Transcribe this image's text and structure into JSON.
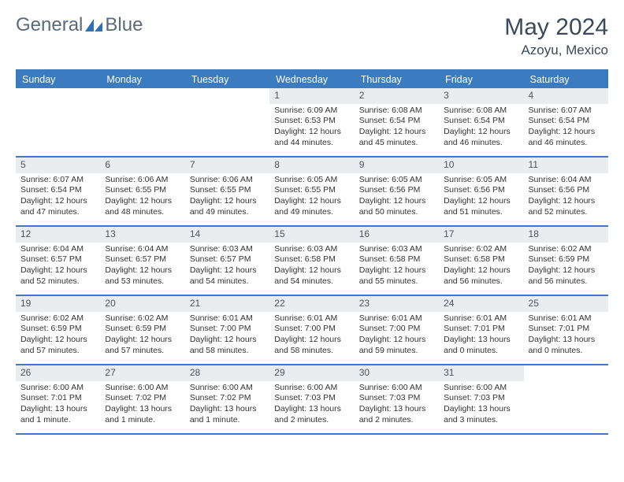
{
  "brand": {
    "part1": "General",
    "part2": "Blue"
  },
  "title": "May 2024",
  "location": "Azoyu, Mexico",
  "colors": {
    "header_bg": "#3b7bbf",
    "header_text": "#ffffff",
    "daynum_bg": "#e9edf0",
    "daynum_text": "#4a5560",
    "body_text": "#333333",
    "title_text": "#3a4a58",
    "logo_text": "#5a6a77",
    "logo_icon": "#2f6fb3",
    "page_bg": "#ffffff"
  },
  "day_headers": [
    "Sunday",
    "Monday",
    "Tuesday",
    "Wednesday",
    "Thursday",
    "Friday",
    "Saturday"
  ],
  "weeks": [
    [
      {
        "empty": true
      },
      {
        "empty": true
      },
      {
        "empty": true
      },
      {
        "day": "1",
        "sunrise": "Sunrise: 6:09 AM",
        "sunset": "Sunset: 6:53 PM",
        "daylight1": "Daylight: 12 hours",
        "daylight2": "and 44 minutes."
      },
      {
        "day": "2",
        "sunrise": "Sunrise: 6:08 AM",
        "sunset": "Sunset: 6:54 PM",
        "daylight1": "Daylight: 12 hours",
        "daylight2": "and 45 minutes."
      },
      {
        "day": "3",
        "sunrise": "Sunrise: 6:08 AM",
        "sunset": "Sunset: 6:54 PM",
        "daylight1": "Daylight: 12 hours",
        "daylight2": "and 46 minutes."
      },
      {
        "day": "4",
        "sunrise": "Sunrise: 6:07 AM",
        "sunset": "Sunset: 6:54 PM",
        "daylight1": "Daylight: 12 hours",
        "daylight2": "and 46 minutes."
      }
    ],
    [
      {
        "day": "5",
        "sunrise": "Sunrise: 6:07 AM",
        "sunset": "Sunset: 6:54 PM",
        "daylight1": "Daylight: 12 hours",
        "daylight2": "and 47 minutes."
      },
      {
        "day": "6",
        "sunrise": "Sunrise: 6:06 AM",
        "sunset": "Sunset: 6:55 PM",
        "daylight1": "Daylight: 12 hours",
        "daylight2": "and 48 minutes."
      },
      {
        "day": "7",
        "sunrise": "Sunrise: 6:06 AM",
        "sunset": "Sunset: 6:55 PM",
        "daylight1": "Daylight: 12 hours",
        "daylight2": "and 49 minutes."
      },
      {
        "day": "8",
        "sunrise": "Sunrise: 6:05 AM",
        "sunset": "Sunset: 6:55 PM",
        "daylight1": "Daylight: 12 hours",
        "daylight2": "and 49 minutes."
      },
      {
        "day": "9",
        "sunrise": "Sunrise: 6:05 AM",
        "sunset": "Sunset: 6:56 PM",
        "daylight1": "Daylight: 12 hours",
        "daylight2": "and 50 minutes."
      },
      {
        "day": "10",
        "sunrise": "Sunrise: 6:05 AM",
        "sunset": "Sunset: 6:56 PM",
        "daylight1": "Daylight: 12 hours",
        "daylight2": "and 51 minutes."
      },
      {
        "day": "11",
        "sunrise": "Sunrise: 6:04 AM",
        "sunset": "Sunset: 6:56 PM",
        "daylight1": "Daylight: 12 hours",
        "daylight2": "and 52 minutes."
      }
    ],
    [
      {
        "day": "12",
        "sunrise": "Sunrise: 6:04 AM",
        "sunset": "Sunset: 6:57 PM",
        "daylight1": "Daylight: 12 hours",
        "daylight2": "and 52 minutes."
      },
      {
        "day": "13",
        "sunrise": "Sunrise: 6:04 AM",
        "sunset": "Sunset: 6:57 PM",
        "daylight1": "Daylight: 12 hours",
        "daylight2": "and 53 minutes."
      },
      {
        "day": "14",
        "sunrise": "Sunrise: 6:03 AM",
        "sunset": "Sunset: 6:57 PM",
        "daylight1": "Daylight: 12 hours",
        "daylight2": "and 54 minutes."
      },
      {
        "day": "15",
        "sunrise": "Sunrise: 6:03 AM",
        "sunset": "Sunset: 6:58 PM",
        "daylight1": "Daylight: 12 hours",
        "daylight2": "and 54 minutes."
      },
      {
        "day": "16",
        "sunrise": "Sunrise: 6:03 AM",
        "sunset": "Sunset: 6:58 PM",
        "daylight1": "Daylight: 12 hours",
        "daylight2": "and 55 minutes."
      },
      {
        "day": "17",
        "sunrise": "Sunrise: 6:02 AM",
        "sunset": "Sunset: 6:58 PM",
        "daylight1": "Daylight: 12 hours",
        "daylight2": "and 56 minutes."
      },
      {
        "day": "18",
        "sunrise": "Sunrise: 6:02 AM",
        "sunset": "Sunset: 6:59 PM",
        "daylight1": "Daylight: 12 hours",
        "daylight2": "and 56 minutes."
      }
    ],
    [
      {
        "day": "19",
        "sunrise": "Sunrise: 6:02 AM",
        "sunset": "Sunset: 6:59 PM",
        "daylight1": "Daylight: 12 hours",
        "daylight2": "and 57 minutes."
      },
      {
        "day": "20",
        "sunrise": "Sunrise: 6:02 AM",
        "sunset": "Sunset: 6:59 PM",
        "daylight1": "Daylight: 12 hours",
        "daylight2": "and 57 minutes."
      },
      {
        "day": "21",
        "sunrise": "Sunrise: 6:01 AM",
        "sunset": "Sunset: 7:00 PM",
        "daylight1": "Daylight: 12 hours",
        "daylight2": "and 58 minutes."
      },
      {
        "day": "22",
        "sunrise": "Sunrise: 6:01 AM",
        "sunset": "Sunset: 7:00 PM",
        "daylight1": "Daylight: 12 hours",
        "daylight2": "and 58 minutes."
      },
      {
        "day": "23",
        "sunrise": "Sunrise: 6:01 AM",
        "sunset": "Sunset: 7:00 PM",
        "daylight1": "Daylight: 12 hours",
        "daylight2": "and 59 minutes."
      },
      {
        "day": "24",
        "sunrise": "Sunrise: 6:01 AM",
        "sunset": "Sunset: 7:01 PM",
        "daylight1": "Daylight: 13 hours",
        "daylight2": "and 0 minutes."
      },
      {
        "day": "25",
        "sunrise": "Sunrise: 6:01 AM",
        "sunset": "Sunset: 7:01 PM",
        "daylight1": "Daylight: 13 hours",
        "daylight2": "and 0 minutes."
      }
    ],
    [
      {
        "day": "26",
        "sunrise": "Sunrise: 6:00 AM",
        "sunset": "Sunset: 7:01 PM",
        "daylight1": "Daylight: 13 hours",
        "daylight2": "and 1 minute."
      },
      {
        "day": "27",
        "sunrise": "Sunrise: 6:00 AM",
        "sunset": "Sunset: 7:02 PM",
        "daylight1": "Daylight: 13 hours",
        "daylight2": "and 1 minute."
      },
      {
        "day": "28",
        "sunrise": "Sunrise: 6:00 AM",
        "sunset": "Sunset: 7:02 PM",
        "daylight1": "Daylight: 13 hours",
        "daylight2": "and 1 minute."
      },
      {
        "day": "29",
        "sunrise": "Sunrise: 6:00 AM",
        "sunset": "Sunset: 7:03 PM",
        "daylight1": "Daylight: 13 hours",
        "daylight2": "and 2 minutes."
      },
      {
        "day": "30",
        "sunrise": "Sunrise: 6:00 AM",
        "sunset": "Sunset: 7:03 PM",
        "daylight1": "Daylight: 13 hours",
        "daylight2": "and 2 minutes."
      },
      {
        "day": "31",
        "sunrise": "Sunrise: 6:00 AM",
        "sunset": "Sunset: 7:03 PM",
        "daylight1": "Daylight: 13 hours",
        "daylight2": "and 3 minutes."
      },
      {
        "empty": true
      }
    ]
  ]
}
